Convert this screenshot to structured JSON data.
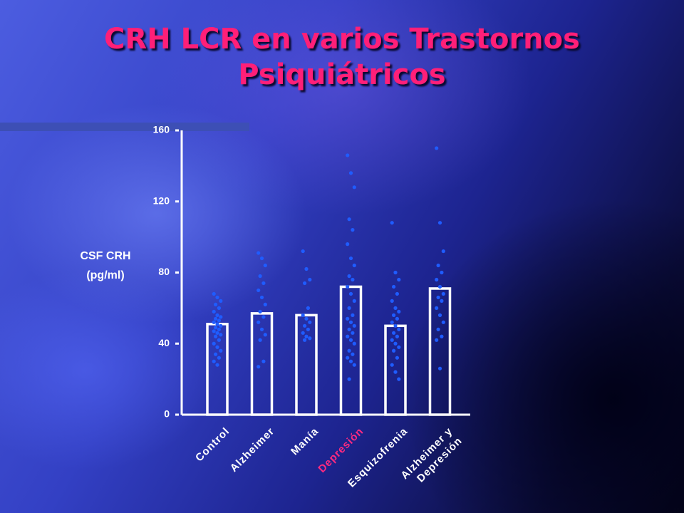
{
  "chart_data": {
    "type": "bar",
    "title": "CRH LCR en varios Trastornos Psiquiátricos",
    "y_label": "CSF CRH\n(pg/ml)",
    "categories": [
      "Control",
      "Alzheimer",
      "Manía",
      "Depresión",
      "Esquizofrenia",
      "Alzheimer y\nDepresión"
    ],
    "category_colors": [
      "#ffffff",
      "#ffffff",
      "#ffffff",
      "#ff2a80",
      "#ffffff",
      "#ffffff"
    ],
    "values": [
      51,
      57,
      56,
      72,
      50,
      71
    ],
    "color": "#ffffff",
    "point_color": "#1f5cff",
    "points": [
      [
        68,
        66,
        64,
        62,
        60,
        58,
        56,
        55,
        54,
        53,
        52,
        51,
        50,
        49,
        48,
        47,
        46,
        45,
        44,
        42,
        40,
        38,
        36,
        34,
        32,
        30,
        28
      ],
      [
        91,
        88,
        84,
        78,
        74,
        70,
        66,
        62,
        58,
        55,
        52,
        48,
        45,
        42,
        30,
        27
      ],
      [
        92,
        82,
        76,
        74,
        60,
        56,
        54,
        52,
        50,
        48,
        46,
        44,
        43,
        42
      ],
      [
        146,
        136,
        128,
        110,
        104,
        96,
        88,
        84,
        78,
        76,
        72,
        68,
        64,
        60,
        56,
        54,
        52,
        50,
        48,
        46,
        44,
        42,
        40,
        36,
        34,
        32,
        30,
        28,
        20
      ],
      [
        108,
        80,
        76,
        72,
        68,
        64,
        60,
        58,
        56,
        54,
        52,
        50,
        48,
        46,
        44,
        42,
        40,
        38,
        36,
        32,
        28,
        24,
        20
      ],
      [
        150,
        108,
        92,
        84,
        80,
        76,
        72,
        68,
        66,
        64,
        60,
        56,
        52,
        48,
        44,
        42,
        26
      ]
    ],
    "ylim": [
      0,
      160
    ],
    "yticks": [
      0,
      40,
      80,
      120,
      160
    ]
  }
}
